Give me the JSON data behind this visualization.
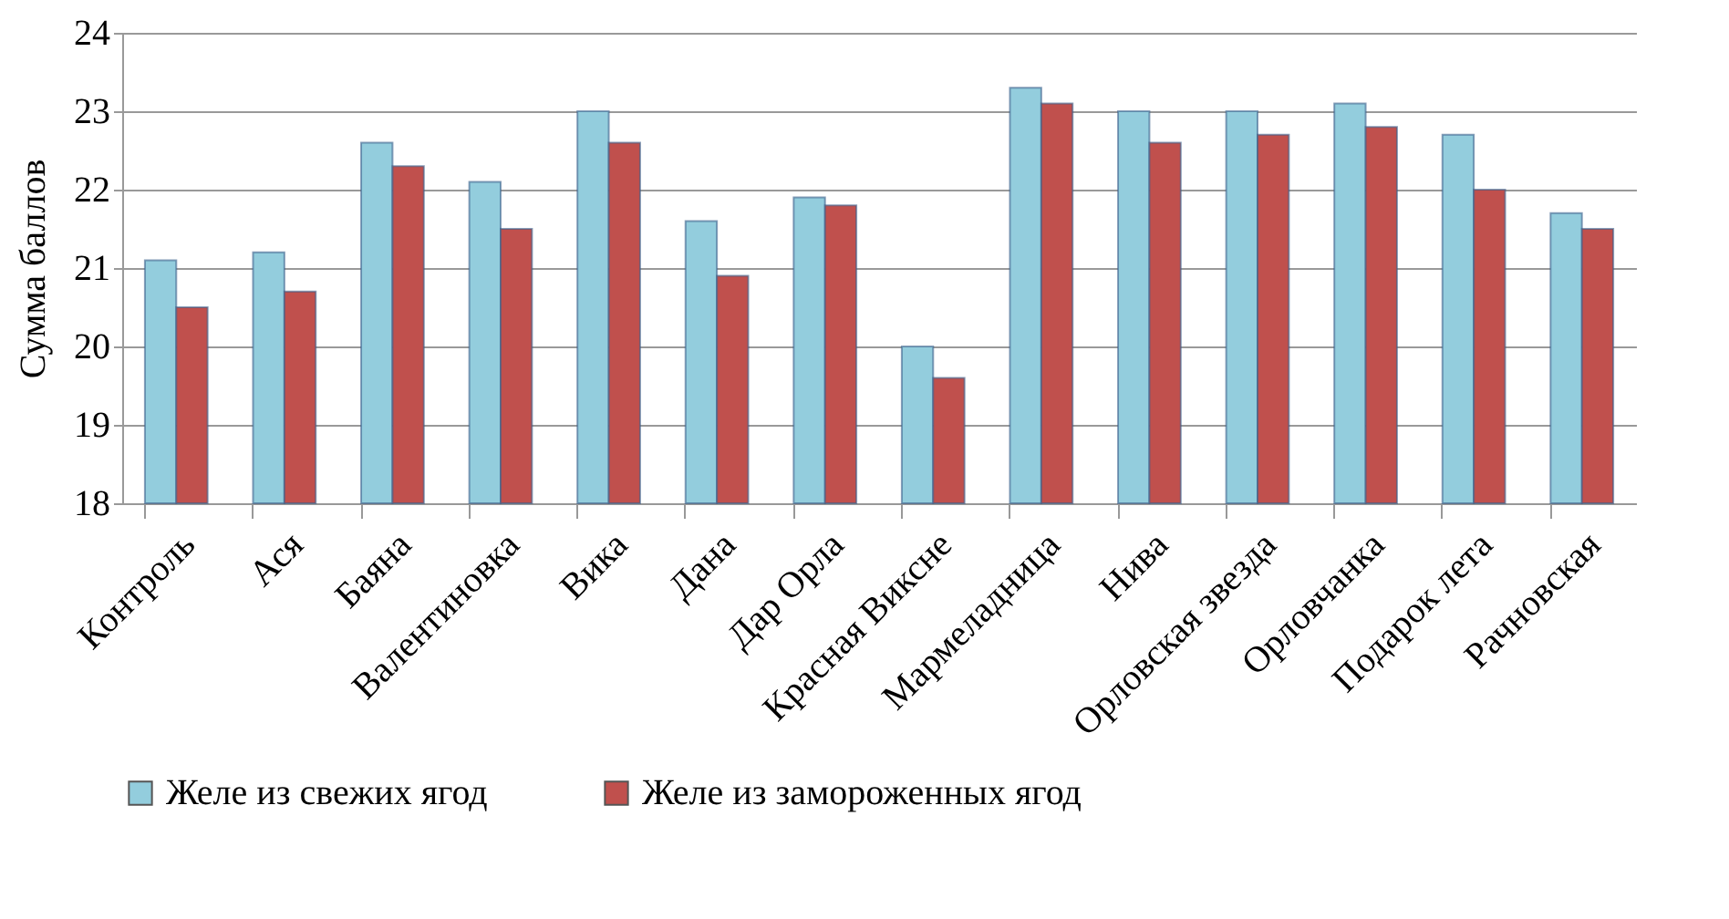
{
  "chart_data": {
    "type": "bar",
    "ylabel": "Сумма баллов",
    "categories": [
      "Контроль",
      "Ася",
      "Баяна",
      "Валентиновка",
      "Вика",
      "Дана",
      "Дар Орла",
      "Красная Виксне",
      "Мармеладница",
      "Нива",
      "Орловская звезда",
      "Орловчанка",
      "Подарок лета",
      "Рачновская"
    ],
    "series": [
      {
        "name": "Желе из свежих ягод",
        "color": "#93cddd",
        "values": [
          21.1,
          21.2,
          22.6,
          22.1,
          23.0,
          21.6,
          21.9,
          20.0,
          23.3,
          23.0,
          23.0,
          23.1,
          22.7,
          21.7
        ]
      },
      {
        "name": "Желе из замороженных ягод",
        "color": "#c0504d",
        "values": [
          20.5,
          20.7,
          22.3,
          21.5,
          22.6,
          20.9,
          21.8,
          19.6,
          23.1,
          22.6,
          22.7,
          22.8,
          22.0,
          21.5
        ]
      }
    ],
    "ylim": [
      18,
      24
    ],
    "yticks": [
      18,
      19,
      20,
      21,
      22,
      23,
      24
    ],
    "grid": "y",
    "legend": "bottom"
  }
}
